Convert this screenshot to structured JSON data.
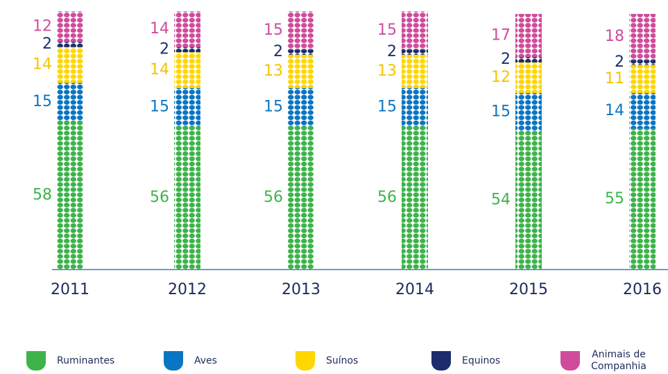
{
  "chart_data": {
    "type": "bar",
    "stacked": true,
    "categories": [
      "2011",
      "2012",
      "2013",
      "2014",
      "2015",
      "2016"
    ],
    "series": [
      {
        "name": "Ruminantes",
        "color": "#3db34a",
        "values": [
          58,
          56,
          56,
          56,
          54,
          55
        ]
      },
      {
        "name": "Aves",
        "color": "#0a75c2",
        "values": [
          15,
          15,
          15,
          15,
          15,
          14
        ]
      },
      {
        "name": "Suínos",
        "color": "#ffd600",
        "values": [
          14,
          14,
          13,
          13,
          12,
          11
        ]
      },
      {
        "name": "Equinos",
        "color": "#1b2d6b",
        "values": [
          2,
          2,
          2,
          2,
          2,
          2
        ]
      },
      {
        "name": "Animais de Companhia",
        "color": "#cf4c9b",
        "values": [
          12,
          14,
          15,
          15,
          17,
          18
        ]
      }
    ]
  }
}
